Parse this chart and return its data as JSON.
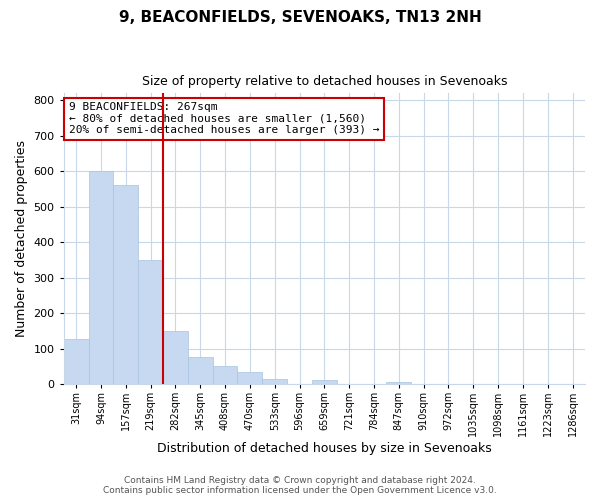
{
  "title": "9, BEACONFIELDS, SEVENOAKS, TN13 2NH",
  "subtitle": "Size of property relative to detached houses in Sevenoaks",
  "xlabel": "Distribution of detached houses by size in Sevenoaks",
  "ylabel": "Number of detached properties",
  "bar_labels": [
    "31sqm",
    "94sqm",
    "157sqm",
    "219sqm",
    "282sqm",
    "345sqm",
    "408sqm",
    "470sqm",
    "533sqm",
    "596sqm",
    "659sqm",
    "721sqm",
    "784sqm",
    "847sqm",
    "910sqm",
    "972sqm",
    "1035sqm",
    "1098sqm",
    "1161sqm",
    "1223sqm",
    "1286sqm"
  ],
  "bar_values": [
    128,
    600,
    560,
    350,
    150,
    75,
    50,
    33,
    15,
    0,
    10,
    0,
    0,
    5,
    0,
    0,
    0,
    0,
    0,
    0,
    0
  ],
  "bar_color": "#c6d9f0",
  "bar_edge_color": "#a8c4e0",
  "vline_color": "#cc0000",
  "vline_x_index": 4,
  "annotation_line1": "9 BEACONFIELDS: 267sqm",
  "annotation_line2": "← 80% of detached houses are smaller (1,560)",
  "annotation_line3": "20% of semi-detached houses are larger (393) →",
  "annotation_box_color": "#cc0000",
  "ylim": [
    0,
    820
  ],
  "yticks": [
    0,
    100,
    200,
    300,
    400,
    500,
    600,
    700,
    800
  ],
  "footer_line1": "Contains HM Land Registry data © Crown copyright and database right 2024.",
  "footer_line2": "Contains public sector information licensed under the Open Government Licence v3.0.",
  "bg_color": "#ffffff",
  "grid_color": "#c8d8e8",
  "title_fontsize": 11,
  "subtitle_fontsize": 9,
  "axis_label_fontsize": 9,
  "tick_fontsize": 7,
  "annotation_fontsize": 8,
  "footer_fontsize": 6.5
}
